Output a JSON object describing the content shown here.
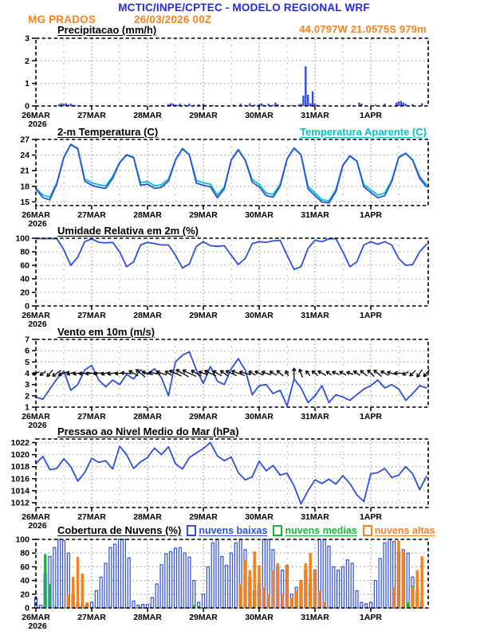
{
  "header": {
    "title": "MCTIC/INPE/CPTEC - MODELO REGIONAL WRF",
    "station": "MG PRADOS",
    "run": "26/03/2026 00Z",
    "location": "44.0797W 21.0575S 979m"
  },
  "colors": {
    "header_blue": "#2727e6",
    "orange": "#f5821e",
    "line_blue": "#2d4ee0",
    "cyan": "#00c4cc",
    "green": "#11bb33",
    "grid_gray": "#999999",
    "black": "#000000"
  },
  "x_axis": {
    "days": [
      "26MAR",
      "27MAR",
      "28MAR",
      "29MAR",
      "30MAR",
      "31MAR",
      "1APR"
    ],
    "year": "2026",
    "hours_total": 168
  },
  "chart_data": [
    {
      "type": "bar",
      "title": "Precipitacao (mm/h)",
      "ylabel": "mm/h",
      "ylim": [
        0,
        3
      ],
      "yticks": [
        0,
        1,
        2,
        3
      ],
      "bars": [
        [
          10,
          0.08
        ],
        [
          11,
          0.12
        ],
        [
          12,
          0.1
        ],
        [
          13,
          0.12
        ],
        [
          14,
          0.06
        ],
        [
          15,
          0.1
        ],
        [
          16,
          0.05
        ],
        [
          17,
          0.03
        ],
        [
          57,
          0.08
        ],
        [
          58,
          0.12
        ],
        [
          59,
          0.1
        ],
        [
          60,
          0.06
        ],
        [
          61,
          0.05
        ],
        [
          62,
          0.1
        ],
        [
          64,
          0.06
        ],
        [
          66,
          0.1
        ],
        [
          68,
          0.05
        ],
        [
          70,
          0.08
        ],
        [
          72,
          0.1
        ],
        [
          73,
          0.05
        ],
        [
          76,
          0.04
        ],
        [
          85,
          0.06
        ],
        [
          88,
          0.1
        ],
        [
          90,
          0.05
        ],
        [
          92,
          0.12
        ],
        [
          94,
          0.06
        ],
        [
          96,
          0.08
        ],
        [
          97,
          0.12
        ],
        [
          98,
          0.06
        ],
        [
          100,
          0.1
        ],
        [
          102,
          0.05
        ],
        [
          103,
          0.15
        ],
        [
          104,
          0.08
        ],
        [
          106,
          0.04
        ],
        [
          110,
          0.04
        ],
        [
          113,
          0.06
        ],
        [
          114,
          0.1
        ],
        [
          115,
          0.45
        ],
        [
          116,
          1.75
        ],
        [
          117,
          0.5
        ],
        [
          118,
          0.12
        ],
        [
          119,
          0.65
        ],
        [
          120,
          0.12
        ],
        [
          121,
          0.05
        ],
        [
          124,
          0.05
        ],
        [
          135,
          0.05
        ],
        [
          139,
          0.15
        ],
        [
          140,
          0.1
        ],
        [
          146,
          0.06
        ],
        [
          150,
          0.1
        ],
        [
          155,
          0.15
        ],
        [
          156,
          0.2
        ],
        [
          157,
          0.22
        ],
        [
          158,
          0.15
        ],
        [
          159,
          0.1
        ],
        [
          162,
          0.08
        ],
        [
          166,
          0.12
        ]
      ]
    },
    {
      "type": "line",
      "title": "2-m Temperatura (C)",
      "title2": "Temperatura Aparente (C)",
      "ylim": [
        14.3,
        27.0
      ],
      "yticks": [
        15,
        18,
        21,
        24,
        27
      ],
      "step_hours": 3,
      "series": [
        {
          "name": "Temperatura Aparente (C)",
          "color_key": "cyan",
          "values": [
            17.6,
            16.3,
            15.9,
            18.7,
            23.6,
            26.1,
            25.3,
            19.4,
            18.7,
            18.3,
            18.1,
            19.9,
            22.6,
            24.1,
            23.6,
            18.7,
            18.9,
            18.1,
            18.3,
            19.4,
            23.1,
            25.3,
            24.1,
            19.1,
            18.7,
            18.4,
            16.3,
            17.9,
            23.1,
            25.1,
            23.1,
            19.3,
            18.4,
            16.7,
            16.4,
            18.4,
            23.3,
            25.4,
            24.1,
            18.0,
            16.7,
            15.4,
            15.2,
            17.4,
            22.1,
            23.9,
            22.9,
            18.3,
            17.3,
            16.3,
            16.7,
            19.2,
            23.6,
            24.4,
            23.1,
            19.9,
            18.3
          ]
        },
        {
          "name": "2-m Temperatura (C)",
          "color_key": "line_blue",
          "values": [
            17.5,
            15.8,
            15.4,
            18.5,
            23.5,
            26.0,
            25.2,
            19.0,
            18.2,
            17.8,
            17.6,
            19.5,
            22.5,
            24.0,
            23.5,
            18.2,
            18.4,
            17.6,
            17.8,
            19.0,
            23.0,
            25.2,
            24.0,
            18.6,
            18.2,
            17.9,
            15.8,
            17.5,
            23.0,
            25.0,
            23.0,
            18.8,
            17.9,
            16.2,
            15.9,
            18.0,
            23.2,
            25.3,
            24.0,
            17.5,
            16.2,
            15.0,
            14.8,
            17.0,
            22.0,
            23.8,
            22.8,
            17.9,
            16.8,
            15.8,
            16.2,
            18.9,
            23.5,
            24.3,
            23.0,
            19.5,
            17.9
          ]
        }
      ]
    },
    {
      "type": "line",
      "title": "Umidade Relativa em 2m (%)",
      "ylim": [
        0,
        100
      ],
      "yticks": [
        0,
        20,
        40,
        60,
        80,
        100
      ],
      "step_hours": 3,
      "series": [
        {
          "name": "Umidade Relativa",
          "color_key": "line_blue",
          "values": [
            100,
            100,
            100,
            100,
            83,
            60,
            72,
            95,
            99,
            94,
            93,
            94,
            80,
            58,
            65,
            90,
            94,
            92,
            90,
            90,
            75,
            56,
            62,
            88,
            95,
            89,
            88,
            89,
            75,
            61,
            70,
            92,
            95,
            94,
            96,
            97,
            75,
            54,
            58,
            85,
            97,
            95,
            99,
            100,
            80,
            58,
            65,
            90,
            95,
            91,
            95,
            90,
            70,
            60,
            61,
            80,
            91
          ]
        }
      ]
    },
    {
      "type": "wind",
      "title": "Vento em 10m (m/s)",
      "ylim": [
        1,
        7
      ],
      "yticks": [
        1,
        2,
        3,
        4,
        5,
        6,
        7
      ],
      "step_hours": 3,
      "arrow_ref_value": 4,
      "series": [
        {
          "name": "Velocidade do vento",
          "color_key": "line_blue",
          "values": [
            1.9,
            1.7,
            2.6,
            3.5,
            4.2,
            2.5,
            3.0,
            4.3,
            4.7,
            3.4,
            2.8,
            3.4,
            3.0,
            3.9,
            3.5,
            4.3,
            3.9,
            4.4,
            3.6,
            2.0,
            5.0,
            5.6,
            5.9,
            4.3,
            3.1,
            4.6,
            3.3,
            3.0,
            4.4,
            5.3,
            4.3,
            2.1,
            2.9,
            3.0,
            2.2,
            2.5,
            1.1,
            3.5,
            2.7,
            1.4,
            2.0,
            2.9,
            1.4,
            2.1,
            1.9,
            1.6,
            2.1,
            2.6,
            2.9,
            3.4,
            2.7,
            3.0,
            2.6,
            1.6,
            2.2,
            2.9,
            2.7
          ]
        }
      ],
      "arrow_angles_deg": [
        205,
        215,
        230,
        215,
        200,
        195,
        190,
        185,
        185,
        190,
        195,
        190,
        185,
        175,
        150,
        140,
        165,
        170,
        160,
        145,
        155,
        150,
        155,
        150,
        160,
        155,
        150,
        145,
        155,
        160,
        165,
        150,
        155,
        160,
        150,
        140,
        120,
        90,
        110,
        130,
        140,
        150,
        145,
        155,
        150,
        160,
        145,
        140,
        135,
        140,
        150,
        165,
        180,
        210,
        225,
        235,
        230
      ]
    },
    {
      "type": "line",
      "title": "Pressao ao Nivel Medio do Mar (hPa)",
      "ylim": [
        1011.2,
        1022.6
      ],
      "yticks": [
        1012,
        1014,
        1016,
        1018,
        1020,
        1022
      ],
      "step_hours": 3,
      "series": [
        {
          "name": "Pressao ao nivel do mar",
          "color_key": "line_blue",
          "values": [
            1018.5,
            1019.7,
            1017.5,
            1017.7,
            1019.3,
            1018.0,
            1015.6,
            1017.0,
            1019.4,
            1018.7,
            1019.0,
            1017.6,
            1021.4,
            1020.0,
            1017.7,
            1018.8,
            1019.5,
            1021.1,
            1020.0,
            1021.3,
            1018.5,
            1017.6,
            1019.5,
            1020.3,
            1021.0,
            1022.0,
            1019.8,
            1019.0,
            1019.6,
            1017.0,
            1015.8,
            1016.3,
            1018.9,
            1017.3,
            1018.2,
            1016.6,
            1016.9,
            1014.8,
            1011.8,
            1014.0,
            1015.8,
            1015.2,
            1015.9,
            1015.1,
            1016.5,
            1015.2,
            1013.3,
            1012.2,
            1016.8,
            1017.0,
            1017.7,
            1016.2,
            1016.6,
            1018.0,
            1016.8,
            1014.2,
            1016.4
          ]
        }
      ]
    },
    {
      "type": "cloud",
      "title": "Cobertura de Nuvens (%)",
      "ylim": [
        0,
        100
      ],
      "yticks": [
        0,
        20,
        40,
        60,
        80,
        100
      ],
      "step_hours": 2,
      "legend": [
        {
          "label": "nuvens baixas",
          "color_key": "line_blue"
        },
        {
          "label": "nuvens medias",
          "color_key": "green"
        },
        {
          "label": "nuvens altas",
          "color_key": "orange"
        }
      ],
      "series": [
        {
          "name": "nuvens baixas",
          "color_key": "line_blue",
          "style": "outline",
          "values": [
            15,
            4,
            50,
            75,
            88,
            100,
            98,
            80,
            20,
            7,
            4,
            5,
            8,
            25,
            45,
            65,
            88,
            93,
            100,
            100,
            73,
            10,
            4,
            5,
            5,
            15,
            35,
            63,
            79,
            82,
            87,
            88,
            80,
            74,
            40,
            8,
            20,
            60,
            95,
            100,
            75,
            62,
            80,
            95,
            100,
            85,
            45,
            25,
            35,
            100,
            100,
            85,
            60,
            55,
            62,
            20,
            30,
            40,
            55,
            35,
            55,
            100,
            100,
            90,
            60,
            55,
            60,
            70,
            65,
            25,
            8,
            6,
            8,
            40,
            72,
            95,
            100,
            97,
            82,
            85,
            80,
            45,
            22,
            10
          ]
        },
        {
          "name": "nuvens medias",
          "color_key": "green",
          "style": "fill",
          "values": [
            0,
            0,
            78,
            35,
            0,
            0,
            0,
            0,
            0,
            0,
            0,
            0,
            0,
            0,
            0,
            0,
            0,
            0,
            0,
            0,
            0,
            0,
            0,
            0,
            0,
            0,
            0,
            0,
            0,
            0,
            0,
            0,
            0,
            0,
            4,
            3,
            0,
            0,
            0,
            0,
            0,
            0,
            0,
            0,
            0,
            0,
            8,
            10,
            0,
            0,
            0,
            0,
            0,
            0,
            0,
            0,
            10,
            25,
            35,
            45,
            30,
            12,
            5,
            0,
            0,
            0,
            0,
            0,
            0,
            0,
            0,
            0,
            0,
            0,
            0,
            0,
            0,
            0,
            0,
            0,
            8,
            32,
            28,
            10
          ]
        },
        {
          "name": "nuvens altas",
          "color_key": "orange",
          "style": "fill",
          "values": [
            0,
            0,
            0,
            0,
            0,
            0,
            0,
            20,
            45,
            74,
            50,
            8,
            0,
            0,
            0,
            0,
            0,
            0,
            0,
            0,
            0,
            0,
            0,
            0,
            0,
            0,
            0,
            0,
            0,
            0,
            0,
            0,
            0,
            0,
            0,
            0,
            0,
            0,
            0,
            0,
            0,
            0,
            0,
            0,
            35,
            70,
            55,
            82,
            62,
            30,
            20,
            55,
            65,
            20,
            62,
            15,
            25,
            40,
            65,
            80,
            55,
            25,
            8,
            0,
            0,
            0,
            0,
            0,
            0,
            0,
            0,
            0,
            0,
            0,
            0,
            0,
            0,
            30,
            98,
            82,
            0,
            30,
            55,
            75
          ]
        }
      ]
    }
  ]
}
